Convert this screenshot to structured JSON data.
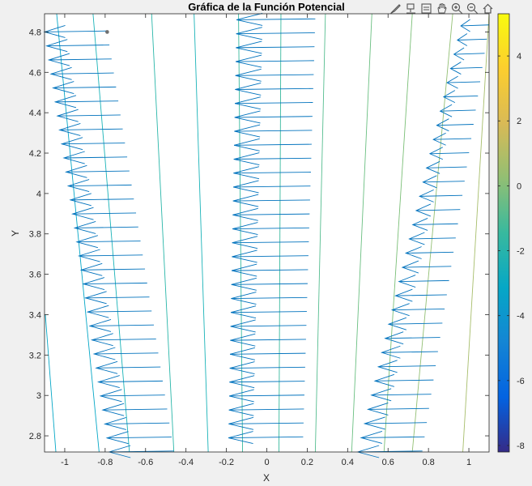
{
  "toolbar": {
    "icons": [
      "brush-icon",
      "data-tips-icon",
      "zoom-box-icon",
      "pan-hand-icon",
      "zoom-in-icon",
      "zoom-out-icon",
      "home-icon"
    ]
  },
  "chart_data": {
    "type": "quiver-contour",
    "title": "Gráfica de la Función Potencial",
    "xlabel": "X",
    "ylabel": "Y",
    "xlim": [
      -1.1,
      1.1
    ],
    "ylim": [
      2.72,
      4.89
    ],
    "x_ticks": [
      -1,
      -0.8,
      -0.6,
      -0.4,
      -0.2,
      0,
      0.2,
      0.4,
      0.6,
      0.8,
      1
    ],
    "x_tick_labels": [
      "-1",
      "-0.8",
      "-0.6",
      "-0.4",
      "-0.2",
      "0",
      "0.2",
      "0.4",
      "0.6",
      "0.8",
      "1"
    ],
    "y_ticks": [
      2.8,
      3,
      3.2,
      3.4,
      3.6,
      3.8,
      4,
      4.2,
      4.4,
      4.6,
      4.8
    ],
    "y_tick_labels": [
      "2.8",
      "3",
      "3.2",
      "3.4",
      "3.6",
      "3.8",
      "4",
      "4.2",
      "4.4",
      "4.6",
      "4.8"
    ],
    "colorbar": {
      "range": [
        -8.2,
        5.3
      ],
      "ticks": [
        4,
        2,
        0,
        -2,
        -4,
        -6,
        -8
      ],
      "tick_labels": [
        "4",
        "2",
        "0",
        "-2",
        "-4",
        "-6",
        "-8"
      ],
      "colormap": [
        "#352a87",
        "#0363e1",
        "#1485d4",
        "#06a7c6",
        "#38b99e",
        "#92bf73",
        "#d9ba56",
        "#fcce2e",
        "#f9fb0e"
      ]
    },
    "arrow_color": "#0072bd",
    "arrow_columns": [
      {
        "y_top": 4.8,
        "y_bottom": 2.72,
        "x_tail_top": -0.79,
        "x_tip_top": -1.1,
        "x_tail_bottom": -0.46,
        "x_tip_bottom": -0.78
      },
      {
        "y_top": 4.86,
        "y_bottom": 2.79,
        "x_tail_top": 0.24,
        "x_tip_top": -0.15,
        "x_tail_bottom": 0.18,
        "x_tip_bottom": -0.19
      },
      {
        "y_top": 4.83,
        "y_bottom": 2.72,
        "x_tail_top": 1.1,
        "x_tip_top": 0.96,
        "x_tail_bottom": 0.77,
        "x_tip_bottom": 0.45
      }
    ],
    "arrows_per_column": 31,
    "contours": [
      {
        "x_top": -1.04,
        "x_bottom": -0.83,
        "color": "#06a7c6"
      },
      {
        "x_top": -0.86,
        "x_bottom": -0.68,
        "color": "#1ab3b8"
      },
      {
        "x_top": -0.57,
        "x_bottom": -0.46,
        "color": "#29b6a9"
      },
      {
        "x_top": -0.36,
        "x_bottom": -0.29,
        "color": "#1ab3b8"
      },
      {
        "x_top": -0.14,
        "x_bottom": -0.12,
        "color": "#38b99e"
      },
      {
        "x_top": 0.07,
        "x_bottom": 0.06,
        "color": "#38b99e"
      },
      {
        "x_top": 0.29,
        "x_bottom": 0.24,
        "color": "#55bd8f"
      },
      {
        "x_top": 0.52,
        "x_bottom": 0.42,
        "color": "#6abf81"
      },
      {
        "x_top": 0.72,
        "x_bottom": 0.58,
        "color": "#7bbf77"
      },
      {
        "x_top": 0.92,
        "x_bottom": 0.72,
        "color": "#92bf73"
      },
      {
        "x_top": 1.1,
        "x_bottom": 0.97,
        "color": "#a7be6b"
      },
      {
        "x_top": -1.1,
        "x_bottom": -1.1,
        "color": "#06a7c6",
        "partial": true
      }
    ],
    "highlight_point": {
      "x": -0.79,
      "y": 4.8
    }
  }
}
